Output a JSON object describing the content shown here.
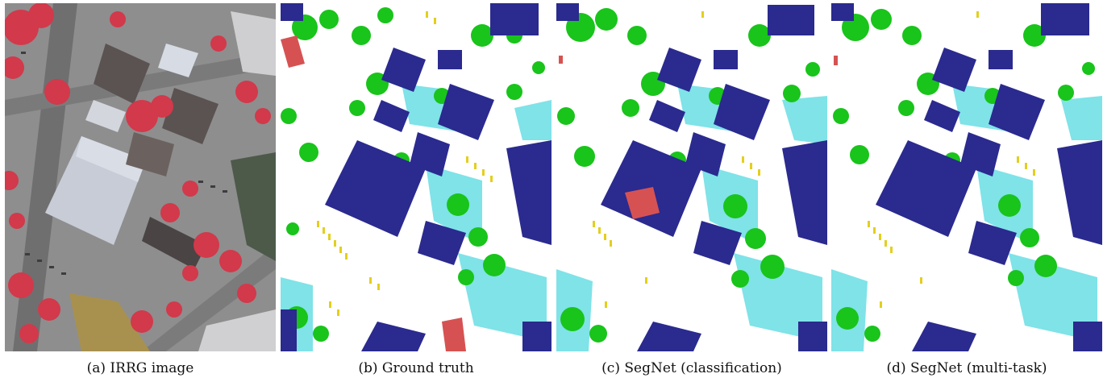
{
  "figure": {
    "panels": [
      {
        "id": "irrg",
        "caption": "(a) IRRG image"
      },
      {
        "id": "gt",
        "caption": "(b) Ground truth"
      },
      {
        "id": "cls",
        "caption": "(c) SegNet (classification)"
      },
      {
        "id": "mt",
        "caption": "(d) SegNet (multi-task)"
      }
    ]
  },
  "colors": {
    "impervious_surface": "#ffffff",
    "building": "#2a2a8f",
    "low_vegetation": "#7fe3e8",
    "tree": "#19c41b",
    "car": "#e3cf1d",
    "clutter": "#d65252",
    "irrg_road": "#8e8e8e",
    "irrg_vegetation": "#d2394b",
    "irrg_roof_light": "#c8ccd6",
    "irrg_roof_dark": "#5b5352",
    "irrg_roof_yellow": "#a8914f"
  }
}
